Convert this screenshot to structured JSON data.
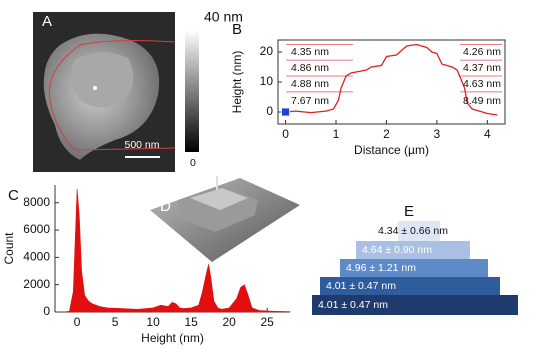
{
  "figure": {
    "panel_a": {
      "letter": "A",
      "colorbar_max": "40 nm",
      "colorbar_min": "0",
      "scale_bar": "500 nm"
    },
    "panel_d": {
      "letter": "D"
    },
    "panel_e": {
      "letter": "E",
      "layers": [
        {
          "label": "4.34 ± 0.66 nm",
          "color": "#dde6f3"
        },
        {
          "label": "4.64 ± 0.90 nm",
          "color": "#a9c0e4"
        },
        {
          "label": "4.96 ± 1.21 nm",
          "color": "#5f8ac8"
        },
        {
          "label": "4.01 ± 0.47 nm",
          "color": "#2f5c9c"
        },
        {
          "label": "4.01 ± 0.47 nm",
          "color": "#1f3b6e"
        }
      ]
    }
  },
  "chart_data": [
    {
      "type": "line",
      "panel": "B",
      "xlabel": "Distance (µm)",
      "ylabel": "Height (nm)",
      "color": "#e02020",
      "x": [
        0,
        0.2,
        0.5,
        0.8,
        0.95,
        1.05,
        1.1,
        1.2,
        1.3,
        1.45,
        1.6,
        1.7,
        1.9,
        2.0,
        2.2,
        2.4,
        2.6,
        2.8,
        2.9,
        3.0,
        3.1,
        3.2,
        3.3,
        3.4,
        3.5,
        3.55,
        3.6,
        3.7,
        3.8,
        4.0,
        4.2
      ],
      "values": [
        0,
        0.3,
        -0.2,
        0.3,
        1,
        4,
        8,
        12,
        13,
        13.5,
        14,
        15,
        15.5,
        18.5,
        19,
        22,
        22.5,
        21.5,
        20,
        19.5,
        16,
        15.5,
        15,
        14,
        10,
        8,
        3,
        1,
        0.5,
        -0.5,
        -1
      ],
      "xlim": [
        -0.15,
        4.35
      ],
      "ylim": [
        -4,
        24
      ],
      "xticks": [
        0,
        1,
        2,
        3,
        4
      ],
      "yticks": [
        0,
        10,
        20
      ],
      "reference_lines": [
        22.5,
        17.3,
        12,
        6.7
      ],
      "cursor": [
        0,
        0
      ],
      "cursor_color": "#2040e0",
      "annotations": [
        "4.35 nm",
        "4.86 nm",
        "4.88 nm",
        "7.67 nm",
        "4.26 nm",
        "4.37 nm",
        "4.63 nm",
        "8.49 nm"
      ]
    },
    {
      "type": "area",
      "panel": "C",
      "xlabel": "Height (nm)",
      "ylabel": "Count",
      "color": "#e01010",
      "x": [
        -2,
        -1,
        -0.5,
        0,
        0.3,
        0.6,
        1,
        1.5,
        2,
        3,
        4,
        6,
        8,
        10,
        11,
        12,
        12.5,
        13,
        13.5,
        14,
        15,
        16,
        16.5,
        17,
        17.3,
        17.6,
        18,
        18.5,
        19,
        20,
        21,
        21.5,
        22,
        22.5,
        23,
        24,
        26,
        28
      ],
      "values": [
        0,
        50,
        1500,
        9000,
        7000,
        3000,
        1200,
        800,
        600,
        400,
        300,
        250,
        200,
        300,
        500,
        400,
        700,
        600,
        300,
        250,
        300,
        500,
        1500,
        2800,
        3500,
        2500,
        800,
        300,
        200,
        300,
        1000,
        1800,
        2000,
        1200,
        300,
        100,
        50,
        20
      ],
      "xlim": [
        -2.9,
        28
      ],
      "ylim": [
        0,
        9300
      ],
      "xticks": [
        0,
        5,
        10,
        15,
        20,
        25
      ],
      "yticks": [
        0,
        2000,
        4000,
        6000,
        8000
      ]
    }
  ]
}
